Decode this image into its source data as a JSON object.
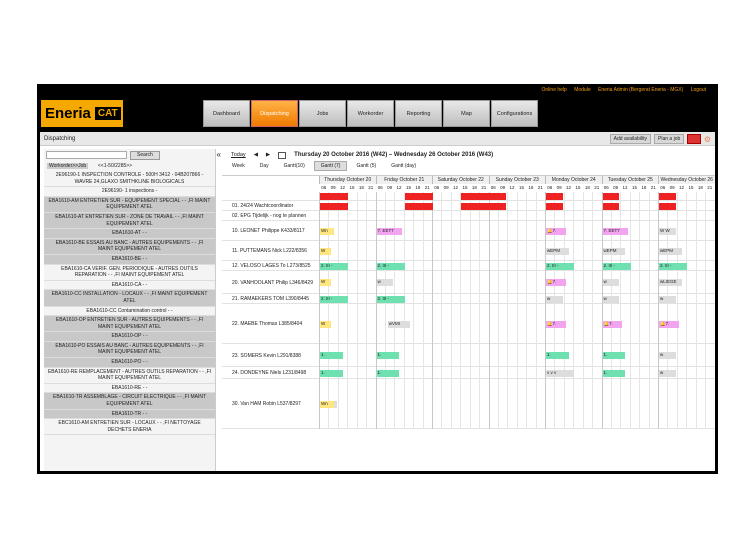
{
  "topbar": {
    "online_help": "Online help",
    "module": "Module",
    "user": "Eneria Admin (Bergerat Eneria - MGX)",
    "logout": "Logout"
  },
  "logo": {
    "brand": "Eneria",
    "cat": "CAT"
  },
  "nav": {
    "tabs": [
      "Dashboard",
      "Dispatching",
      "Jobs",
      "Workorder",
      "Reporting",
      "Map",
      "Configurations"
    ],
    "active": 1
  },
  "title": {
    "label": "Dispatching",
    "add_availability": "Add availability",
    "plan_job": "Plan a job",
    "red_btn": "",
    "gear": "⚙"
  },
  "sidebar": {
    "search_btn": "Search",
    "collapse": "«",
    "header_wo": "Workorder>>Job",
    "header_range": "<<1-50/2285>>",
    "items": [
      {
        "lines": [
          "2E96190-1 INSPECTION CONTROLE - 500H 3412 - 04B207866 -",
          "WAVRE 24,GLAXO SMITHKLINE BIOLOGICALS"
        ],
        "grey": false
      },
      {
        "lines": [
          "2E96190- 1 inspections -"
        ],
        "grey": false
      },
      {
        "lines": [
          "EBA1610-AM ENTRETIEN SUR - EQUIPEMENT SPECIAL - - ,FI MAINT",
          "EQUIPEMENT ATEL"
        ],
        "grey": true
      },
      {
        "lines": [
          "EBA1610-AT ENTRETIEN SUR - ZONE DE TRAVAIL - - ,FI MAINT",
          "EQUIPEMENT ATEL"
        ],
        "grey": true
      },
      {
        "lines": [
          "EBA1610-AT - -"
        ],
        "grey": true
      },
      {
        "lines": [
          "EBA1610-BE ESSAIS AU BANC - AUTRES EQUIPEMENTS - - ,FI",
          "MAINT EQUIPEMENT ATEL"
        ],
        "grey": true
      },
      {
        "lines": [
          "EBA1610-BE - -"
        ],
        "grey": true
      },
      {
        "lines": [
          "EBA1610-CA VERIF. GEN. PERIODIQUE - AUTRES OUTILS",
          "REPARATION - - ,FI MAINT EQUIPEMENT ATEL"
        ],
        "grey": false
      },
      {
        "lines": [
          "EBA1610-CA - -"
        ],
        "grey": false
      },
      {
        "lines": [
          "EBA1610-CC INSTALLATION - LOCAUX - - ,FI MAINT EQUIPEMENT",
          "ATEL"
        ],
        "grey": true
      },
      {
        "lines": [
          "EBA1610-CC Contamination control - -"
        ],
        "grey": false
      },
      {
        "lines": [
          "EBA1610-OP ENTRETIEN SUR - AUTRES EQUIPEMENTS - - ,FI",
          "MAINT EQUIPEMENT ATEL"
        ],
        "grey": true
      },
      {
        "lines": [
          "EBA1610-OP - -"
        ],
        "grey": true
      },
      {
        "lines": [
          "EBA1610-PO ESSAIS AU BANC - AUTRES EQUIPEMENTS - - ,FI",
          "MAINT EQUIPEMENT ATEL"
        ],
        "grey": true
      },
      {
        "lines": [
          "EBA1610-PO - -"
        ],
        "grey": true
      },
      {
        "lines": [
          "EBA1610-RE REMPLACEMENT - AUTRES OUTILS REPARATION - - ,FI",
          "MAINT EQUIPEMENT ATEL"
        ],
        "grey": false
      },
      {
        "lines": [
          "EBA1610-RE - -"
        ],
        "grey": false
      },
      {
        "lines": [
          "EBA1610-TR ASSEMBLAGE - CIRCUIT ELECTRIQUE - - ,FI MAINT",
          "EQUIPEMENT ATEL"
        ],
        "grey": true
      },
      {
        "lines": [
          "EBA1610-TR - -"
        ],
        "grey": true
      },
      {
        "lines": [
          "EBC1610-AM ENTRETIEN SUR - LOCAUX - - ,FI NETTOYAGE",
          "DECHETS ENERIA"
        ],
        "grey": false
      }
    ]
  },
  "planner": {
    "today": "Today",
    "prev": "◀",
    "next": "▶",
    "range": "Thursday 20 October 2016 (W42) – Wednesday 26 October 2016 (W43)",
    "views": [
      "Week",
      "Day",
      "Gantt(10)",
      "Gantt (7)",
      "Gantt (5)",
      "Gantt (day)"
    ],
    "active_view": 3,
    "days": [
      "Thursday October 20",
      "Friday October 21",
      "Saturday October 22",
      "Sunday October 23",
      "Monday October 24",
      "Tuesday October 25",
      "Wednesday October 26"
    ],
    "hours": [
      "06",
      "09",
      "12",
      "15",
      "18",
      "21"
    ],
    "rows": [
      {
        "name": "",
        "h": 9,
        "blocks": [
          {
            "d": 0,
            "o": 0,
            "w": 0.5,
            "c": "#e22",
            "t": ""
          },
          {
            "d": 1,
            "o": 0.5,
            "w": 0.5,
            "c": "#e22",
            "t": ""
          },
          {
            "d": 2,
            "o": 0.5,
            "w": 0.5,
            "c": "#e22",
            "t": ""
          },
          {
            "d": 3,
            "o": 0,
            "w": 0.3,
            "c": "#e22",
            "t": ""
          },
          {
            "d": 4,
            "o": 0,
            "w": 0.3,
            "c": "#e22",
            "t": ""
          },
          {
            "d": 5,
            "o": 0,
            "w": 0.3,
            "c": "#e22",
            "t": ""
          },
          {
            "d": 6,
            "o": 0,
            "w": 0.3,
            "c": "#e22",
            "t": ""
          }
        ]
      },
      {
        "name": "01. 24/24 Wachtcoordinator",
        "h": 10,
        "blocks": [
          {
            "d": 0,
            "o": 0,
            "w": 0.5,
            "c": "#e22",
            "t": ""
          },
          {
            "d": 1,
            "o": 0.5,
            "w": 0.5,
            "c": "#e22",
            "t": ""
          },
          {
            "d": 2,
            "o": 0.5,
            "w": 0.5,
            "c": "#e22",
            "t": ""
          },
          {
            "d": 3,
            "o": 0,
            "w": 0.3,
            "c": "#e22",
            "t": ""
          },
          {
            "d": 4,
            "o": 0,
            "w": 0.3,
            "c": "#e22",
            "t": ""
          },
          {
            "d": 5,
            "o": 0,
            "w": 0.3,
            "c": "#e22",
            "t": ""
          },
          {
            "d": 6,
            "o": 0,
            "w": 0.3,
            "c": "#e22",
            "t": ""
          }
        ]
      },
      {
        "name": "02. EPG Tijdelijk - nog te plannen",
        "h": 10,
        "blocks": []
      },
      {
        "name": "10. LEONET Philippe K433/8117",
        "h": 20,
        "blocks": [
          {
            "d": 0,
            "o": 0,
            "w": 0.25,
            "c": "#ffe680",
            "t": "Wn"
          },
          {
            "d": 1,
            "o": 0,
            "w": 0.45,
            "c": "#f3a4f0",
            "t": "7. EET7"
          },
          {
            "d": 4,
            "o": 0,
            "w": 0.35,
            "c": "#f3a4f0",
            "t": "🔔7."
          },
          {
            "d": 5,
            "o": 0,
            "w": 0.45,
            "c": "#f3a4f0",
            "t": "7. EET7"
          },
          {
            "d": 6,
            "o": 0,
            "w": 0.3,
            "c": "#ddd",
            "t": "W  W"
          }
        ]
      },
      {
        "name": "11. PUTTEMANS Nick L222/8356",
        "h": 20,
        "blocks": [
          {
            "d": 0,
            "o": 0,
            "w": 0.2,
            "c": "#ffe680",
            "t": "W"
          },
          {
            "d": 4,
            "o": 0,
            "w": 0.4,
            "c": "#ddd",
            "t": "wEPM"
          },
          {
            "d": 5,
            "o": 0,
            "w": 0.4,
            "c": "#ddd",
            "t": "wEPM"
          },
          {
            "d": 6,
            "o": 0,
            "w": 0.4,
            "c": "#ddd",
            "t": "wEPM"
          }
        ]
      },
      {
        "name": "12. VELOSO LAGES To L273/8525",
        "h": 10,
        "blocks": [
          {
            "d": 0,
            "o": 0,
            "w": 0.5,
            "c": "#6fe0b0",
            "t": "2. III -"
          },
          {
            "d": 1,
            "o": 0,
            "w": 0.5,
            "c": "#6fe0b0",
            "t": "2. III -"
          },
          {
            "d": 4,
            "o": 0,
            "w": 0.5,
            "c": "#6fe0b0",
            "t": "2. III -"
          },
          {
            "d": 5,
            "o": 0,
            "w": 0.5,
            "c": "#6fe0b0",
            "t": "2. III -"
          },
          {
            "d": 6,
            "o": 0,
            "w": 0.5,
            "c": "#6fe0b0",
            "t": "2. III -"
          }
        ]
      },
      {
        "name": "20. VANHOOLANT Philip L346/8429",
        "h": 23,
        "blocks": [
          {
            "d": 0,
            "o": 0,
            "w": 0.2,
            "c": "#ffe680",
            "t": "W"
          },
          {
            "d": 1,
            "o": 0,
            "w": 0.3,
            "c": "#ddd",
            "t": "w"
          },
          {
            "d": 4,
            "o": 0,
            "w": 0.35,
            "c": "#f3a4f0",
            "t": "🔔7."
          },
          {
            "d": 5,
            "o": 0,
            "w": 0.3,
            "c": "#ddd",
            "t": "w"
          },
          {
            "d": 6,
            "o": 0,
            "w": 0.4,
            "c": "#ddd",
            "t": "wLIEGE"
          }
        ]
      },
      {
        "name": "21. RAMAEKERS TOM L390/8445",
        "h": 10,
        "blocks": [
          {
            "d": 0,
            "o": 0,
            "w": 0.5,
            "c": "#6fe0b0",
            "t": "2. III -"
          },
          {
            "d": 1,
            "o": 0,
            "w": 0.5,
            "c": "#6fe0b0",
            "t": "2. III -"
          },
          {
            "d": 4,
            "o": 0,
            "w": 0.3,
            "c": "#ddd",
            "t": "w"
          },
          {
            "d": 5,
            "o": 0,
            "w": 0.3,
            "c": "#ddd",
            "t": "w"
          },
          {
            "d": 6,
            "o": 0,
            "w": 0.3,
            "c": "#ddd",
            "t": "w"
          }
        ]
      },
      {
        "name": "22. MAEBE Thomas L385/8404",
        "h": 40,
        "blocks": [
          {
            "d": 0,
            "o": 0,
            "w": 0.2,
            "c": "#ffe680",
            "t": "W"
          },
          {
            "d": 1,
            "o": 0.2,
            "w": 0.4,
            "c": "#ddd",
            "t": "wVMI"
          },
          {
            "d": 4,
            "o": 0,
            "w": 0.35,
            "c": "#f3a4f0",
            "t": "🔔7."
          },
          {
            "d": 5,
            "o": 0,
            "w": 0.35,
            "c": "#f3a4f0",
            "t": "🔔7."
          },
          {
            "d": 6,
            "o": 0,
            "w": 0.35,
            "c": "#f3a4f0",
            "t": "🔔7."
          }
        ]
      },
      {
        "name": "23. SOMERS Kevin L291/8388",
        "h": 23,
        "blocks": [
          {
            "d": 0,
            "o": 0,
            "w": 0.4,
            "c": "#6fe0b0",
            "t": "1."
          },
          {
            "d": 1,
            "o": 0,
            "w": 0.4,
            "c": "#6fe0b0",
            "t": "1."
          },
          {
            "d": 4,
            "o": 0,
            "w": 0.4,
            "c": "#6fe0b0",
            "t": "1."
          },
          {
            "d": 5,
            "o": 0,
            "w": 0.4,
            "c": "#6fe0b0",
            "t": "1."
          },
          {
            "d": 6,
            "o": 0,
            "w": 0.3,
            "c": "#ddd",
            "t": "w"
          }
        ]
      },
      {
        "name": "24. DONDEYNE Niels L231/8498",
        "h": 12,
        "blocks": [
          {
            "d": 0,
            "o": 0,
            "w": 0.4,
            "c": "#6fe0b0",
            "t": "1."
          },
          {
            "d": 1,
            "o": 0,
            "w": 0.4,
            "c": "#6fe0b0",
            "t": "1."
          },
          {
            "d": 4,
            "o": 0,
            "w": 0.5,
            "c": "#ddd",
            "t": "v v v"
          },
          {
            "d": 5,
            "o": 0,
            "w": 0.4,
            "c": "#6fe0b0",
            "t": "1."
          },
          {
            "d": 6,
            "o": 0,
            "w": 0.3,
            "c": "#ddd",
            "t": "w"
          }
        ]
      },
      {
        "name": "30. Van HAM Robin L537/8297",
        "h": 50,
        "blocks": [
          {
            "d": 0,
            "o": 0,
            "w": 0.3,
            "c": "#ddd",
            "t": ""
          },
          {
            "d": 0,
            "o": 0,
            "w": 0.25,
            "c": "#ffe680",
            "t": "Wn"
          }
        ]
      }
    ]
  }
}
